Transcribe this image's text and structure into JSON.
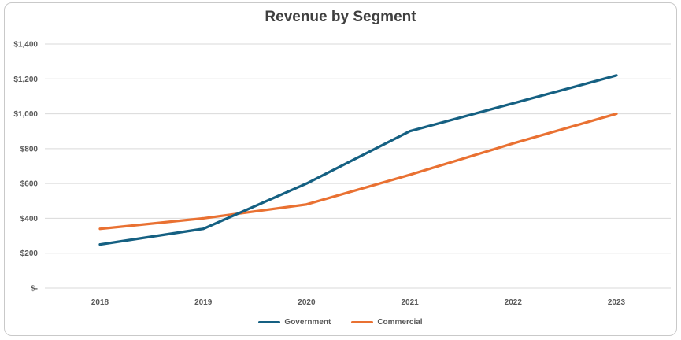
{
  "colors": {
    "background": "#ffffff",
    "frame_border": "#c9c9c9",
    "grid": "#d9d9d9",
    "title_text": "#3f3f3f",
    "axis_text": "#595959",
    "legend_text": "#595959"
  },
  "chart_data": {
    "type": "line",
    "title": "Revenue by Segment",
    "categories": [
      "2018",
      "2019",
      "2020",
      "2021",
      "2022",
      "2023"
    ],
    "series": [
      {
        "name": "Government",
        "color": "#156082",
        "values": [
          250,
          340,
          600,
          900,
          1060,
          1220
        ]
      },
      {
        "name": "Commercial",
        "color": "#E97132",
        "values": [
          340,
          400,
          480,
          650,
          830,
          1000
        ]
      }
    ],
    "xlabel": "",
    "ylabel": "",
    "ylim": [
      0,
      1400
    ],
    "ytick_step": 200,
    "ytick_labels": [
      "$-",
      "$200",
      "$400",
      "$600",
      "$800",
      "$1,000",
      "$1,200",
      "$1,400"
    ],
    "grid": "horizontal",
    "legend_position": "bottom"
  }
}
